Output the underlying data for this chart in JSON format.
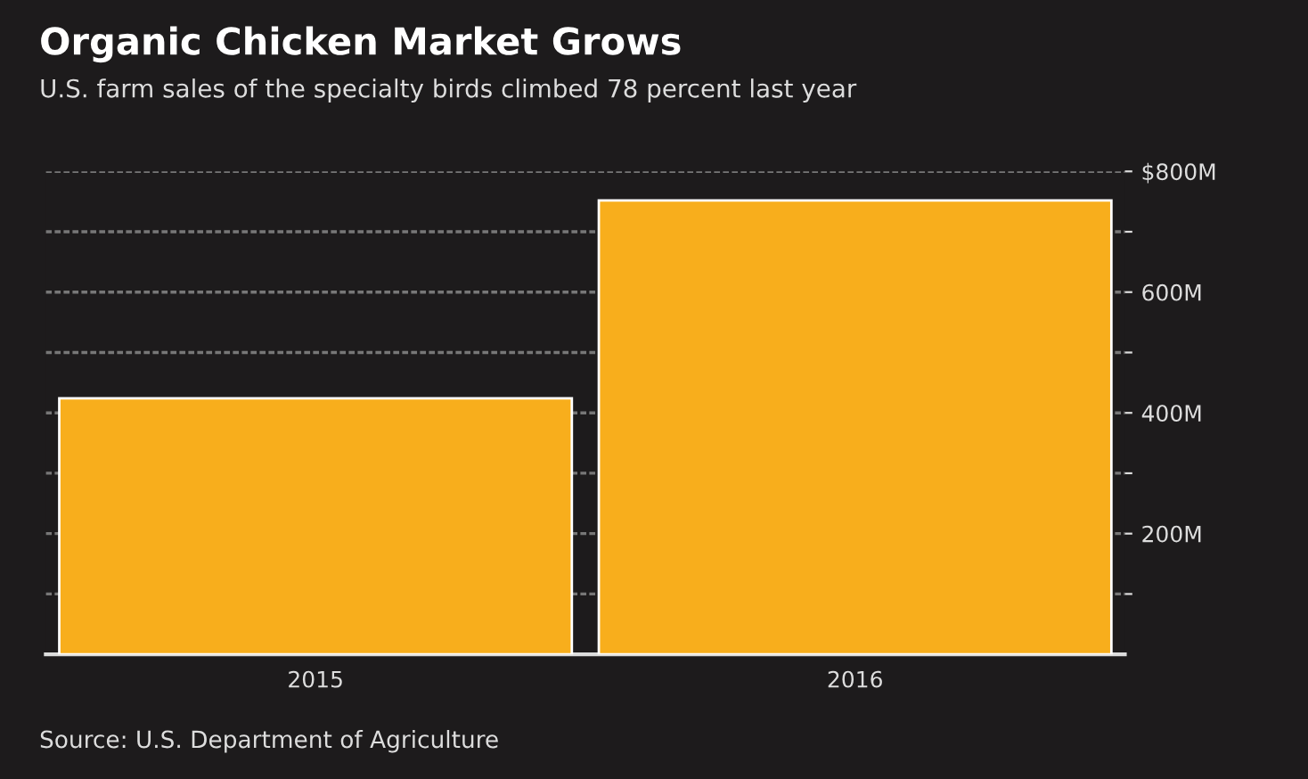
{
  "chart_data": {
    "type": "bar",
    "title": "Organic Chicken Market Grows",
    "subtitle": "U.S. farm sales of the specialty birds climbed 78 percent last year",
    "categories": [
      "2015",
      "2016"
    ],
    "series": [
      {
        "color": "#f8ae1c",
        "values": [
          424,
          752
        ]
      }
    ],
    "ylim": [
      0,
      800
    ],
    "yticks": [
      {
        "value": 100,
        "label": null
      },
      {
        "value": 200,
        "label": "200M"
      },
      {
        "value": 300,
        "label": null
      },
      {
        "value": 400,
        "label": "400M"
      },
      {
        "value": 500,
        "label": null
      },
      {
        "value": 600,
        "label": "600M"
      },
      {
        "value": 700,
        "label": null
      },
      {
        "value": 800,
        "label": "$800M"
      }
    ],
    "grid": "y",
    "legend": false,
    "annotations": [
      "Source: U.S. Department of Agriculture"
    ]
  }
}
